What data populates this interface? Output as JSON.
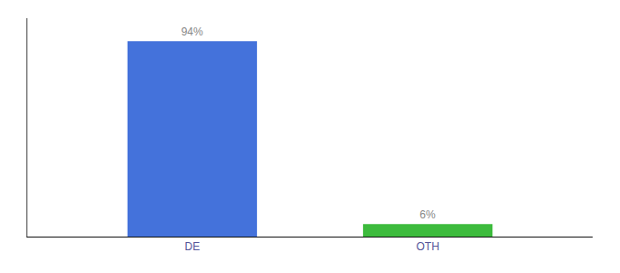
{
  "chart_data": {
    "type": "bar",
    "categories": [
      "DE",
      "OTH"
    ],
    "values": [
      94,
      6
    ],
    "value_labels": [
      "94%",
      "6%"
    ],
    "data_labels": true,
    "colors": [
      "#4472db",
      "#3dbb3d"
    ],
    "ylim": [
      0,
      105
    ],
    "grid": false,
    "tick_labels": "x"
  }
}
